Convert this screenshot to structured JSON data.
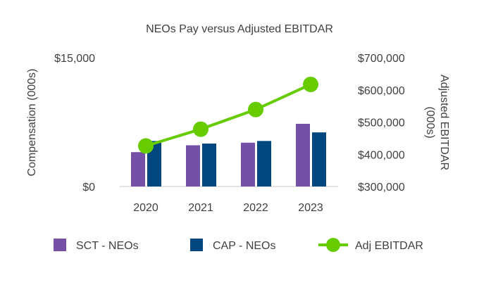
{
  "chart_data": {
    "type": "bar",
    "title": "NEOs Pay versus Adjusted EBITDAR",
    "categories": [
      "2020",
      "2021",
      "2022",
      "2023"
    ],
    "ylabel": "Compensation (000s)",
    "ylabel_right": "Adjusted EBITDAR (000s)",
    "ylim": [
      0,
      15000
    ],
    "ylim_right": [
      300000,
      700000
    ],
    "yticks": [
      "$0",
      "$15,000"
    ],
    "yticks_right": [
      "$300,000",
      "$400,000",
      "$500,000",
      "$600,000",
      "$700,000"
    ],
    "grid": false,
    "legend_position": "bottom",
    "series": [
      {
        "name": "SCT - NEOs",
        "type": "bar",
        "axis": "left",
        "color": "#7451A6",
        "values": [
          4000,
          4800,
          5100,
          7300
        ]
      },
      {
        "name": "CAP - NEOs",
        "type": "bar",
        "axis": "left",
        "color": "#00467F",
        "values": [
          5300,
          5000,
          5300,
          6300
        ]
      },
      {
        "name": "Adj EBITDAR",
        "type": "line",
        "axis": "right",
        "color": "#66CC00",
        "values": [
          426000,
          478000,
          539000,
          617000
        ]
      }
    ]
  }
}
